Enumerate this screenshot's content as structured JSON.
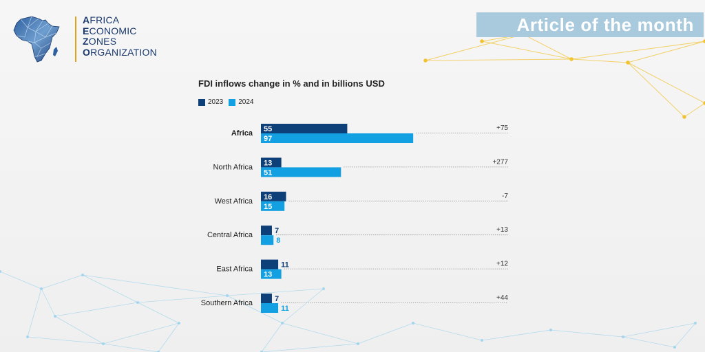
{
  "logo": {
    "lines": [
      {
        "cap": "A",
        "rest": "FRICA"
      },
      {
        "cap": "E",
        "rest": "CONOMIC"
      },
      {
        "cap": "Z",
        "rest": "ONES"
      },
      {
        "cap": "O",
        "rest": "RGANIZATION"
      }
    ]
  },
  "banner": {
    "label": "Article of the month"
  },
  "colors": {
    "series_2023": "#0d3f78",
    "series_2024": "#13a0e2",
    "network_gold": "#f2c230",
    "network_blue": "#9fd3ec",
    "banner_bg": "#a9c9dc",
    "logo_blue": "#1a3a6e",
    "logo_gold": "#e0a21b"
  },
  "chart_data": {
    "type": "bar",
    "orientation": "horizontal",
    "title": "FDI inflows change in % and in billions USD",
    "categories": [
      "Africa",
      "North Africa",
      "West Africa",
      "Central Africa",
      "East Africa",
      "Southern Africa"
    ],
    "highlight_category": "Africa",
    "series": [
      {
        "name": "2023",
        "values": [
          55,
          13,
          16,
          7,
          11,
          7
        ]
      },
      {
        "name": "2024",
        "values": [
          97,
          51,
          15,
          8,
          13,
          11
        ]
      }
    ],
    "change_labels": [
      "+75",
      "+277",
      "-7",
      "+13",
      "+12",
      "+44"
    ],
    "xlim": [
      0,
      155
    ],
    "legend_position": "top-left",
    "grid": false
  }
}
